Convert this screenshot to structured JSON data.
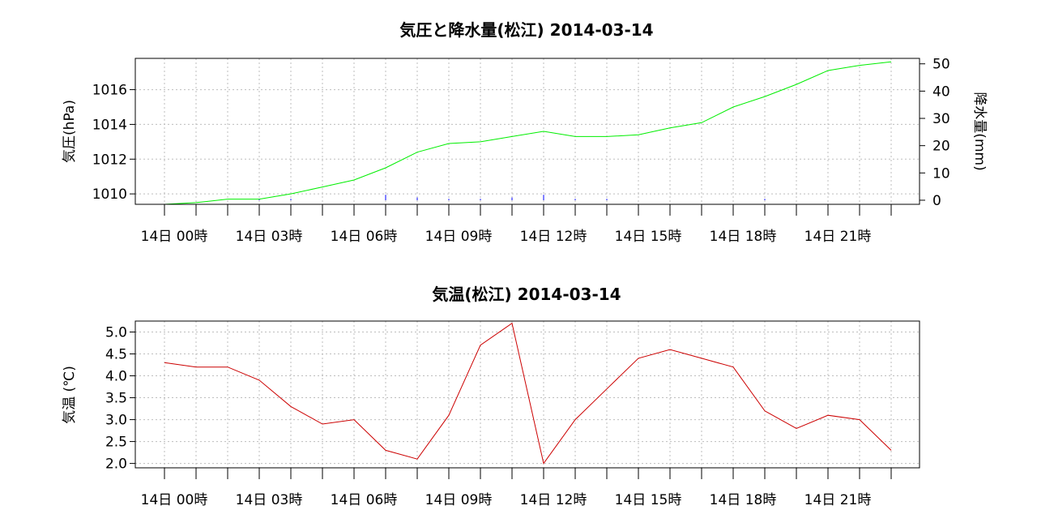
{
  "chart_data": [
    {
      "type": "line",
      "title": "気圧と降水量(松江) 2014-03-14",
      "ylabel": "気圧(hPa)",
      "ylabel2": "降水量(mm)",
      "x_tick_labels": [
        "14日 00時",
        "14日 03時",
        "14日 06時",
        "14日 09時",
        "14日 12時",
        "14日 15時",
        "14日 18時",
        "14日 21時"
      ],
      "x_hours": [
        0,
        1,
        2,
        3,
        4,
        5,
        6,
        7,
        8,
        9,
        10,
        11,
        12,
        13,
        14,
        15,
        16,
        17,
        18,
        19,
        20,
        21,
        22,
        23
      ],
      "y_ticks": [
        "1010",
        "1012",
        "1014",
        "1016"
      ],
      "y2_ticks": [
        "0",
        "10",
        "20",
        "30",
        "40",
        "50"
      ],
      "ylim": [
        1009.4,
        1017.8
      ],
      "y2lim": [
        -1.5,
        52
      ],
      "grid": true,
      "series": [
        {
          "axis": "left",
          "color": "#00ee00",
          "values": [
            1009.4,
            1009.5,
            1009.7,
            1009.7,
            1010.0,
            1010.4,
            1010.8,
            1011.5,
            1012.4,
            1012.9,
            1013.0,
            1013.3,
            1013.6,
            1013.3,
            1013.3,
            1013.4,
            1013.8,
            1014.1,
            1015.0,
            1015.6,
            1016.3,
            1017.1,
            1017.4,
            1017.6
          ]
        },
        {
          "axis": "right",
          "color": "#0000ff",
          "values": [
            0,
            0,
            0,
            0.5,
            0.5,
            0,
            0,
            2,
            1,
            0.5,
            0.5,
            1,
            2,
            0.5,
            0.5,
            0,
            0,
            0,
            0,
            0.5,
            0,
            0,
            0,
            0
          ]
        }
      ]
    },
    {
      "type": "line",
      "title": "気温(松江) 2014-03-14",
      "ylabel": "気温 (℃)",
      "x_tick_labels": [
        "14日 00時",
        "14日 03時",
        "14日 06時",
        "14日 09時",
        "14日 12時",
        "14日 15時",
        "14日 18時",
        "14日 21時"
      ],
      "x_hours": [
        0,
        1,
        2,
        3,
        4,
        5,
        6,
        7,
        8,
        9,
        10,
        11,
        12,
        13,
        14,
        15,
        16,
        17,
        18,
        19,
        20,
        21,
        22,
        23
      ],
      "y_ticks": [
        "2.0",
        "2.5",
        "3.0",
        "3.5",
        "4.0",
        "4.5",
        "5.0"
      ],
      "ylim": [
        1.9,
        5.25
      ],
      "grid": true,
      "series": [
        {
          "axis": "left",
          "color": "#cc0000",
          "values": [
            4.3,
            4.2,
            4.2,
            3.9,
            3.3,
            2.9,
            3.0,
            2.3,
            2.1,
            3.1,
            4.7,
            5.2,
            2.0,
            3.0,
            3.7,
            4.4,
            4.6,
            4.4,
            4.2,
            3.2,
            2.8,
            3.1,
            3.0,
            2.3
          ]
        }
      ]
    }
  ]
}
